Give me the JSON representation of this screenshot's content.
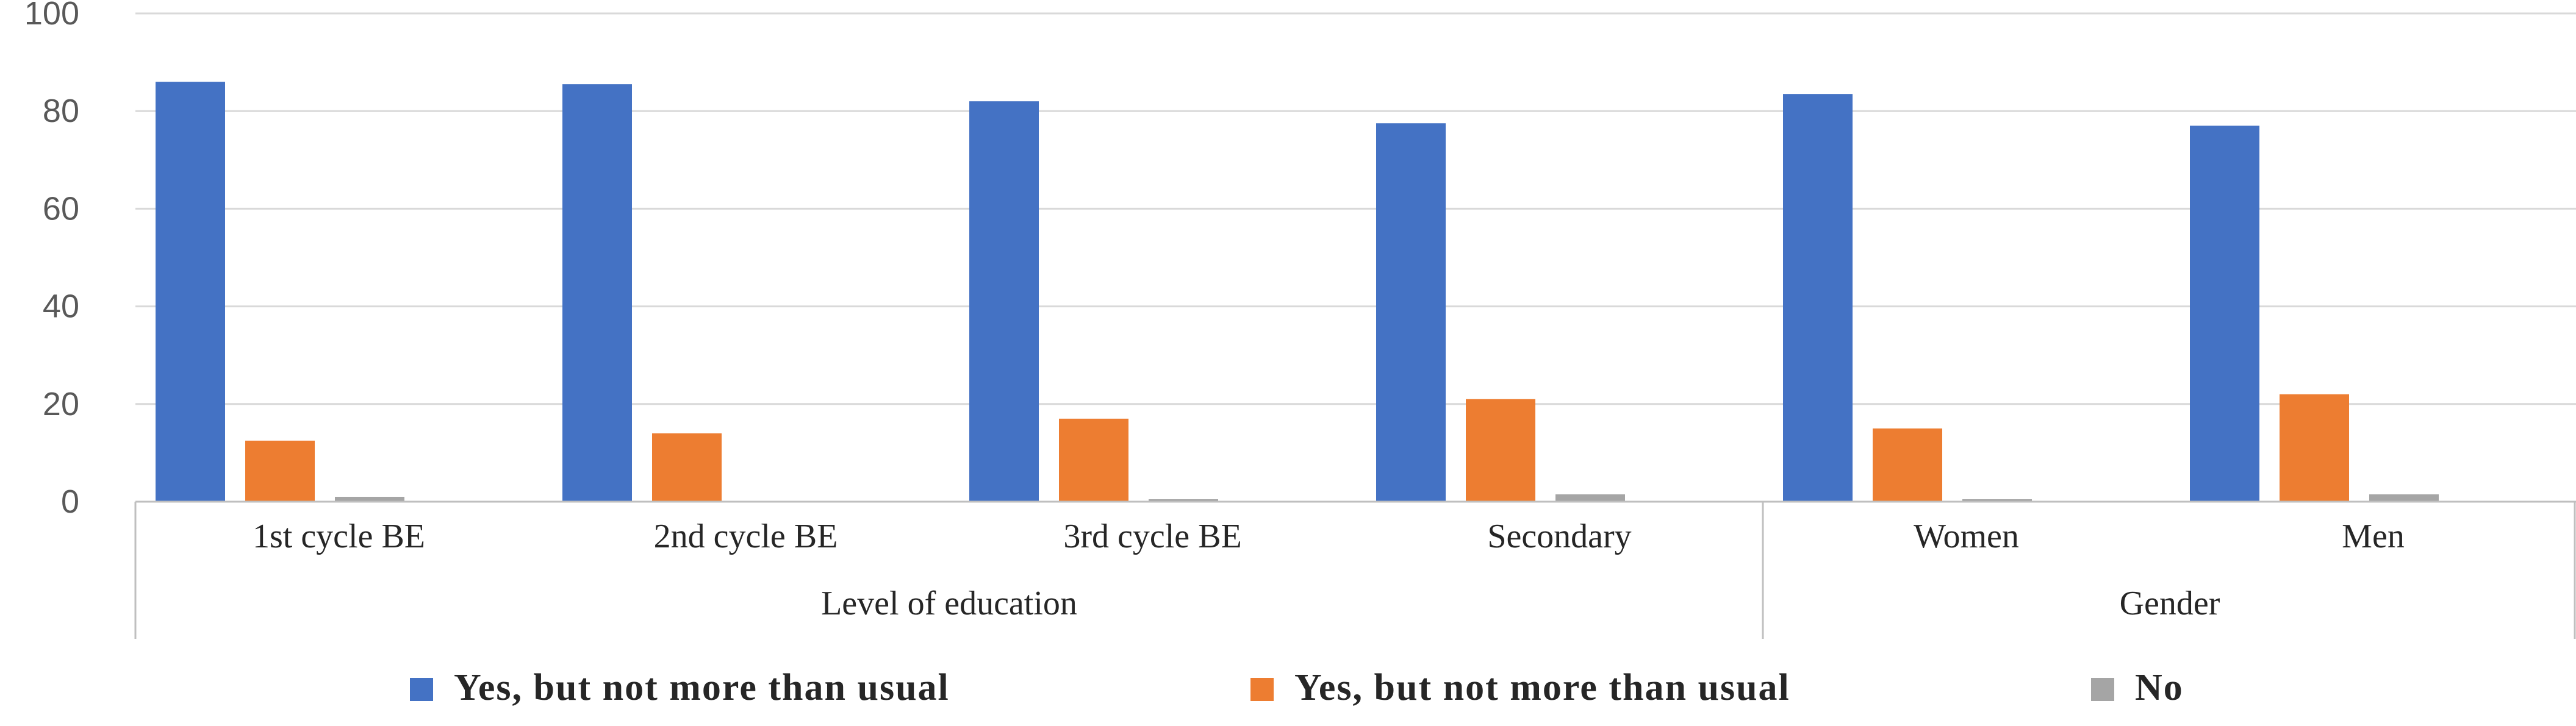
{
  "chart_data": {
    "type": "bar",
    "categories": [
      "1st cycle BE",
      "2nd cycle BE",
      "3rd cycle BE",
      "Secondary",
      "Women",
      "Men"
    ],
    "groups": [
      {
        "label": "Level of education",
        "categories": [
          "1st cycle BE",
          "2nd cycle BE",
          "3rd cycle BE",
          "Secondary"
        ]
      },
      {
        "label": "Gender",
        "categories": [
          "Women",
          "Men"
        ]
      }
    ],
    "series": [
      {
        "name": "Yes, but not more than usual",
        "color": "#4472C4",
        "values": [
          86,
          85.5,
          82,
          77.5,
          83.5,
          77
        ]
      },
      {
        "name": "Yes, but not more than usual",
        "color": "#ED7D31",
        "values": [
          12.5,
          14,
          17,
          21,
          15,
          22
        ]
      },
      {
        "name": "No",
        "color": "#A5A5A5",
        "values": [
          1,
          0,
          0.5,
          1.5,
          0.5,
          1.5
        ]
      }
    ],
    "yticks": [
      "0",
      "20",
      "40",
      "60",
      "80",
      "100"
    ],
    "ylim": [
      0,
      100
    ],
    "grid": true,
    "legend_position": "bottom",
    "title": "",
    "xlabel": "",
    "ylabel": ""
  }
}
